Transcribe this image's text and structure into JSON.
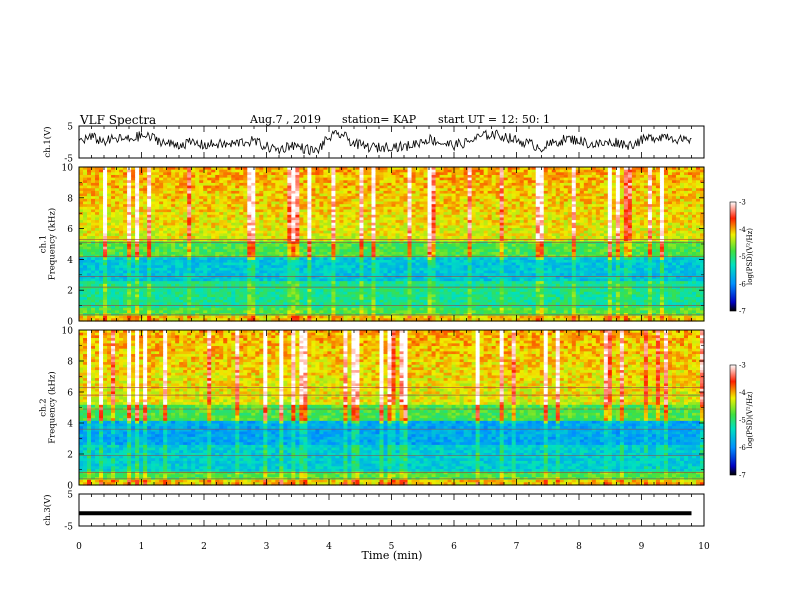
{
  "header": {
    "title": "VLF Spectra",
    "date": "Aug.7  , 2019",
    "station": "station= KAP",
    "start_ut": "start  UT  =   12: 50: 1"
  },
  "chart_data": [
    {
      "type": "line",
      "name": "ch1-waveform",
      "ylabel": "ch.1(V)",
      "ylim": [
        -5,
        5
      ],
      "y_ticks": [
        "5",
        "-5"
      ],
      "x": [
        0,
        0.2,
        0.4,
        0.6,
        0.8,
        1.0,
        1.2,
        1.4,
        1.6,
        1.8,
        2.0,
        2.2,
        2.4,
        2.6,
        2.8,
        3.0,
        3.2,
        3.4,
        3.6,
        3.8,
        4.0,
        4.2,
        4.4,
        4.6,
        4.8,
        5.0,
        5.2,
        5.4,
        5.6,
        5.8,
        6.0,
        6.2,
        6.4,
        6.6,
        6.8,
        7.0,
        7.2,
        7.4,
        7.6,
        7.8,
        8.0,
        8.2,
        8.4,
        8.6,
        8.8,
        9.0,
        9.2,
        9.4,
        9.6,
        9.8
      ],
      "values": [
        0.5,
        1.5,
        0.2,
        1.0,
        0.8,
        2.0,
        1.2,
        -0.5,
        -0.8,
        -0.2,
        -1.0,
        -0.6,
        -0.9,
        0.0,
        0.3,
        -1.5,
        -2.5,
        -0.8,
        -2.0,
        -3.0,
        1.5,
        2.5,
        -0.5,
        -1.5,
        -1.8,
        -1.2,
        -1.6,
        -0.4,
        1.0,
        -0.3,
        -1.0,
        -0.2,
        1.5,
        2.5,
        1.8,
        0.5,
        -0.5,
        -1.8,
        -0.3,
        1.0,
        0.5,
        -0.8,
        -0.5,
        0.0,
        -1.0,
        0.5,
        1.5,
        2.0,
        0.8,
        -0.2
      ]
    },
    {
      "type": "heatmap",
      "name": "ch1-spectrogram",
      "ylabel": "ch.1\nFrequency  (kHz)",
      "ylim": [
        0,
        10
      ],
      "y_ticks": [
        "0",
        "2",
        "4",
        "6",
        "8",
        "10"
      ],
      "colorbar": {
        "label": "log(PSD)(V²/Hz)",
        "range": [
          -7,
          -3
        ],
        "ticks": [
          "-3",
          "-4",
          "-5",
          "-6",
          "-7"
        ]
      }
    },
    {
      "type": "heatmap",
      "name": "ch2-spectrogram",
      "ylabel": "ch.2\nFrequency  (kHz)",
      "ylim": [
        0,
        10
      ],
      "y_ticks": [
        "0",
        "2",
        "4",
        "6",
        "8",
        "10"
      ],
      "colorbar": {
        "label": "log(PSD)(V²/Hz)",
        "range": [
          -7,
          -3
        ],
        "ticks": [
          "-3",
          "-4",
          "-5",
          "-6",
          "-7"
        ]
      }
    },
    {
      "type": "line",
      "name": "ch3-waveform",
      "ylabel": "ch.3(V)",
      "ylim": [
        -5,
        5
      ],
      "y_ticks": [
        "5",
        "-5"
      ],
      "x": [
        0,
        9.8
      ],
      "values": [
        -1,
        -1
      ]
    }
  ],
  "x_axis": {
    "label": "Time  (min)",
    "range": [
      0,
      10
    ],
    "ticks": [
      "0",
      "1",
      "2",
      "3",
      "4",
      "5",
      "6",
      "7",
      "8",
      "9",
      "10"
    ]
  }
}
